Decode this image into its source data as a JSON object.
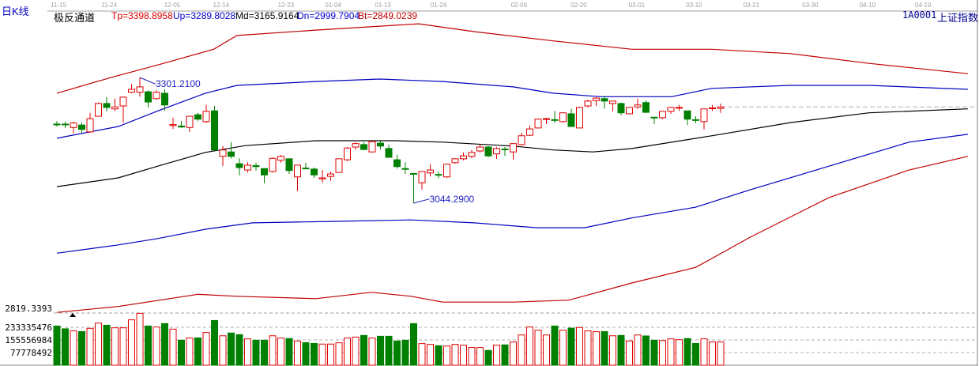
{
  "header": {
    "period_label": "日K线",
    "indicator_name": "极反通道",
    "indicators": [
      {
        "text": "Tp=3398.8958",
        "color": "#e00000"
      },
      {
        "text": "Up=3289.8028",
        "color": "#0000d0"
      },
      {
        "text": "Md=3165.9164",
        "color": "#000000"
      },
      {
        "text": "Dn=2999.7904",
        "color": "#0000d0"
      },
      {
        "text": "Bt=2849.0239",
        "color": "#c00000"
      }
    ],
    "symbol": "1A0001",
    "symbol_name": "上证指数"
  },
  "colors": {
    "up": "#e00000",
    "down": "#008000",
    "channel_outer": "#c00000",
    "channel_inner": "#0000c0",
    "mid": "#000000",
    "annotation": "#2020c0"
  },
  "chart_data": {
    "type": "candlestick",
    "x_tick_labels": [
      {
        "label": "11-15",
        "index": 1.2
      },
      {
        "label": "11-24",
        "index": 7.3
      },
      {
        "label": "12-05",
        "index": 14.9
      },
      {
        "label": "12-14",
        "index": 20.8
      },
      {
        "label": "12-23",
        "index": 28.6
      },
      {
        "label": "01-04",
        "index": 34.3
      },
      {
        "label": "01-13",
        "index": 40.3
      },
      {
        "label": "01-24",
        "index": 47
      },
      {
        "label": "02-09",
        "index": 56.7
      },
      {
        "label": "02-20",
        "index": 63.9
      },
      {
        "label": "03-01",
        "index": 70.9
      },
      {
        "label": "03-10",
        "index": 77.8
      },
      {
        "label": "03-21",
        "index": 84.7
      },
      {
        "label": "03-30",
        "index": 91.8
      },
      {
        "label": "04-10",
        "index": 98.7
      },
      {
        "label": "04-19",
        "index": 105.4
      }
    ],
    "ohlc_fields": [
      "open",
      "high",
      "low",
      "close"
    ],
    "candles": [
      [
        3206,
        3212,
        3201,
        3205
      ],
      [
        3206,
        3211,
        3198,
        3205
      ],
      [
        3199,
        3211,
        3187,
        3208
      ],
      [
        3204,
        3209,
        3188,
        3195
      ],
      [
        3190,
        3229,
        3188,
        3217
      ],
      [
        3222,
        3250,
        3222,
        3248
      ],
      [
        3248,
        3261,
        3232,
        3240
      ],
      [
        3237,
        3258,
        3233,
        3241
      ],
      [
        3243,
        3262,
        3209,
        3261
      ],
      [
        3271,
        3288,
        3269,
        3277
      ],
      [
        3271,
        3301.21,
        3262,
        3282
      ],
      [
        3272,
        3275,
        3240,
        3251
      ],
      [
        3258,
        3275,
        3256,
        3271
      ],
      [
        3269,
        3277,
        3233,
        3245
      ],
      [
        3203,
        3219,
        3196,
        3205
      ],
      [
        3202,
        3212,
        3198,
        3200
      ],
      [
        3199,
        3222,
        3190,
        3222
      ],
      [
        3225,
        3229,
        3212,
        3216
      ],
      [
        3211,
        3245,
        3208,
        3232
      ],
      [
        3233,
        3243,
        3153,
        3153
      ],
      [
        3140,
        3161,
        3120,
        3153
      ],
      [
        3149,
        3169,
        3136,
        3140
      ],
      [
        3125,
        3136,
        3101,
        3117
      ],
      [
        3112,
        3128,
        3107,
        3122
      ],
      [
        3121,
        3127,
        3111,
        3119
      ],
      [
        3115,
        3115,
        3085,
        3102
      ],
      [
        3109,
        3138,
        3107,
        3136
      ],
      [
        3132,
        3143,
        3127,
        3140
      ],
      [
        3135,
        3136,
        3104,
        3111
      ],
      [
        3098,
        3122,
        3069,
        3122
      ],
      [
        3116,
        3127,
        3114,
        3115
      ],
      [
        3114,
        3117,
        3096,
        3102
      ],
      [
        3094,
        3112,
        3086,
        3096
      ],
      [
        3099,
        3109,
        3090,
        3104
      ],
      [
        3107,
        3135,
        3107,
        3135
      ],
      [
        3133,
        3159,
        3130,
        3157
      ],
      [
        3159,
        3169,
        3154,
        3166
      ],
      [
        3164,
        3169,
        3153,
        3154
      ],
      [
        3149,
        3172,
        3148,
        3170
      ],
      [
        3167,
        3172,
        3154,
        3161
      ],
      [
        3156,
        3164,
        3138,
        3138
      ],
      [
        3133,
        3143,
        3115,
        3119
      ],
      [
        3115,
        3128,
        3104,
        3114
      ],
      [
        3105,
        3106,
        3044.29,
        3104
      ],
      [
        3086,
        3109,
        3072,
        3109
      ],
      [
        3106,
        3124,
        3099,
        3112
      ],
      [
        3103,
        3109,
        3096,
        3102
      ],
      [
        3098,
        3124,
        3096,
        3124
      ],
      [
        3127,
        3136,
        3125,
        3135
      ],
      [
        3135,
        3148,
        3132,
        3141
      ],
      [
        3140,
        3153,
        3136,
        3148
      ],
      [
        3151,
        3164,
        3148,
        3159
      ],
      [
        3159,
        3161,
        3138,
        3141
      ],
      [
        3145,
        3159,
        3135,
        3156
      ],
      [
        3155,
        3159,
        3141,
        3154
      ],
      [
        3149,
        3167,
        3133,
        3166
      ],
      [
        3164,
        3188,
        3162,
        3182
      ],
      [
        3183,
        3203,
        3182,
        3196
      ],
      [
        3198,
        3217,
        3198,
        3216
      ],
      [
        3216,
        3219,
        3206,
        3217
      ],
      [
        3215,
        3233,
        3208,
        3214
      ],
      [
        3211,
        3230,
        3209,
        3229
      ],
      [
        3227,
        3237,
        3201,
        3201
      ],
      [
        3198,
        3241,
        3198,
        3240
      ],
      [
        3243,
        3256,
        3240,
        3253
      ],
      [
        3254,
        3261,
        3243,
        3259
      ],
      [
        3258,
        3264,
        3237,
        3253
      ],
      [
        3248,
        3253,
        3232,
        3253
      ],
      [
        3248,
        3250,
        3224,
        3229
      ],
      [
        3227,
        3240,
        3227,
        3240
      ],
      [
        3241,
        3258,
        3237,
        3245
      ],
      [
        3250,
        3254,
        3229,
        3230
      ],
      [
        3220,
        3219,
        3206,
        3219
      ],
      [
        3219,
        3232,
        3216,
        3232
      ],
      [
        3232,
        3241,
        3227,
        3240
      ],
      [
        3239,
        3245,
        3233,
        3240
      ],
      [
        3233,
        3233,
        3204,
        3216
      ],
      [
        3215,
        3222,
        3208,
        3214
      ],
      [
        3211,
        3237,
        3195,
        3237
      ],
      [
        3238,
        3245,
        3233,
        3239
      ],
      [
        3238,
        3248,
        3229,
        3241
      ]
    ],
    "volume": [
      241000000.0,
      224000000.0,
      211000000.0,
      207000000.0,
      227000000.0,
      259000000.0,
      246000000.0,
      230000000.0,
      230000000.0,
      279000000.0,
      319000000.0,
      241000000.0,
      235000000.0,
      256000000.0,
      222000000.0,
      154000000.0,
      167000000.0,
      168000000.0,
      201000000.0,
      275000000.0,
      181000000.0,
      198000000.0,
      188000000.0,
      162000000.0,
      154000000.0,
      154000000.0,
      181000000.0,
      167000000.0,
      164000000.0,
      149000000.0,
      139000000.0,
      134000000.0,
      130000000.0,
      130000000.0,
      138000000.0,
      167000000.0,
      173000000.0,
      183000000.0,
      167000000.0,
      178000000.0,
      178000000.0,
      149000000.0,
      154000000.0,
      256000000.0,
      133000000.0,
      128000000.0,
      120000000.0,
      118000000.0,
      128000000.0,
      123000000.0,
      109000000.0,
      109000000.0,
      91000000.0,
      123000000.0,
      125000000.0,
      143000000.0,
      186000000.0,
      235000000.0,
      215000000.0,
      186000000.0,
      241000000.0,
      215000000.0,
      228000000.0,
      232000000.0,
      211000000.0,
      206000000.0,
      207000000.0,
      181000000.0,
      183000000.0,
      149000000.0,
      186000000.0,
      180000000.0,
      154000000.0,
      152000000.0,
      162000000.0,
      157000000.0,
      164000000.0,
      134000000.0,
      162000000.0,
      143000000.0,
      143000000.0
    ],
    "channel_lines": [
      {
        "key": "Tp",
        "color": "#c00000",
        "points": [
          [
            1,
            3269
          ],
          [
            7.5,
            3301
          ],
          [
            13.2,
            3327
          ],
          [
            19.9,
            3359
          ],
          [
            22.7,
            3387
          ],
          [
            32.2,
            3398
          ],
          [
            44.6,
            3411
          ],
          [
            51.3,
            3395
          ],
          [
            60.8,
            3376
          ],
          [
            70.3,
            3359
          ],
          [
            79.9,
            3359
          ],
          [
            89.4,
            3350
          ],
          [
            98.9,
            3330
          ],
          [
            110.8,
            3309
          ]
        ]
      },
      {
        "key": "Up",
        "color": "#0000c0",
        "points": [
          [
            1,
            3177
          ],
          [
            8.4,
            3201
          ],
          [
            13.2,
            3233
          ],
          [
            18.9,
            3269
          ],
          [
            22.7,
            3285
          ],
          [
            32.2,
            3293
          ],
          [
            39.9,
            3298
          ],
          [
            47.5,
            3293
          ],
          [
            56,
            3282
          ],
          [
            60.8,
            3269
          ],
          [
            66.5,
            3262
          ],
          [
            75.1,
            3262
          ],
          [
            79.9,
            3279
          ],
          [
            89.4,
            3285
          ],
          [
            98.9,
            3285
          ],
          [
            110.8,
            3277
          ]
        ]
      },
      {
        "key": "Md",
        "color": "#000000",
        "points": [
          [
            1,
            3078
          ],
          [
            8.4,
            3096
          ],
          [
            13.2,
            3120
          ],
          [
            18.9,
            3148
          ],
          [
            23.7,
            3162
          ],
          [
            32.2,
            3172
          ],
          [
            41.8,
            3172
          ],
          [
            47.5,
            3169
          ],
          [
            56,
            3161
          ],
          [
            60.8,
            3153
          ],
          [
            65.6,
            3149
          ],
          [
            70.3,
            3156
          ],
          [
            79.9,
            3182
          ],
          [
            89.4,
            3209
          ],
          [
            98.9,
            3229
          ],
          [
            110.8,
            3237
          ]
        ]
      },
      {
        "key": "Dn",
        "color": "#0000c0",
        "points": [
          [
            1,
            2942
          ],
          [
            8.4,
            2959
          ],
          [
            13.2,
            2972
          ],
          [
            18.9,
            2991
          ],
          [
            24.6,
            3004
          ],
          [
            34.1,
            3007
          ],
          [
            43.7,
            3010
          ],
          [
            51.3,
            3004
          ],
          [
            58.9,
            2994
          ],
          [
            64.6,
            2994
          ],
          [
            70.3,
            3014
          ],
          [
            78,
            3036
          ],
          [
            84.6,
            3072
          ],
          [
            94.1,
            3120
          ],
          [
            103.7,
            3169
          ],
          [
            110.8,
            3185
          ]
        ]
      },
      {
        "key": "Bt",
        "color": "#c00000",
        "points": [
          [
            1,
            2821
          ],
          [
            8.4,
            2833
          ],
          [
            18,
            2858
          ],
          [
            22.7,
            2854
          ],
          [
            32.2,
            2849
          ],
          [
            38.9,
            2862
          ],
          [
            43.7,
            2854
          ],
          [
            47.5,
            2842
          ],
          [
            56,
            2842
          ],
          [
            62.7,
            2846
          ],
          [
            70.3,
            2881
          ],
          [
            78,
            2913
          ],
          [
            84.6,
            2975
          ],
          [
            94.1,
            3056
          ],
          [
            103.7,
            3112
          ],
          [
            110.8,
            3140
          ]
        ]
      }
    ],
    "annotations": [
      {
        "text": "3301.2100",
        "index": 11,
        "price": 3301.21
      },
      {
        "text": "3044.2900",
        "index": 44,
        "price": 3044.29
      }
    ],
    "price_axis_label": "2819.3393",
    "volume_axis_labels": [
      {
        "text": "233335476",
        "value": 233335476
      },
      {
        "text": "155556984",
        "value": 155556984
      },
      {
        "text": "77778492",
        "value": 77778492
      }
    ],
    "last_close_line": 3241
  }
}
